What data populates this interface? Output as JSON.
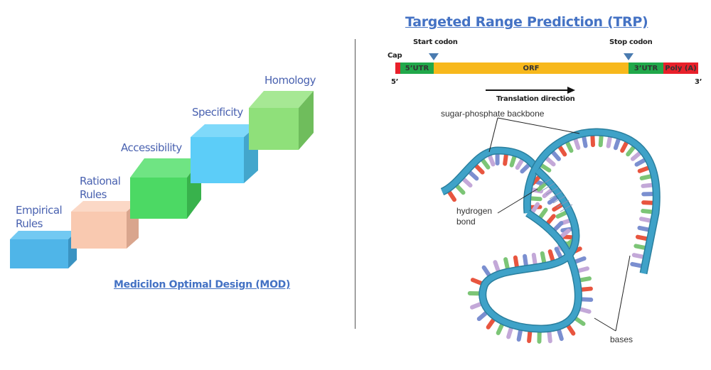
{
  "left": {
    "steps": [
      {
        "label": "Empirical Rules",
        "front": "#4fb5e8",
        "top": "#72c9f2",
        "side": "#3a93c2"
      },
      {
        "label": "Rational Rules",
        "front": "#f9c9b0",
        "top": "#fbd8c6",
        "side": "#d9a58d"
      },
      {
        "label": "Accessibility",
        "front": "#4cd964",
        "top": "#6fe483",
        "side": "#38b24c"
      },
      {
        "label": "Specificity",
        "front": "#5ccdf8",
        "top": "#7fd9fa",
        "side": "#43a6cc"
      },
      {
        "label": "Homology",
        "front": "#8fe07a",
        "top": "#a6e894",
        "side": "#6fbd5c"
      }
    ],
    "title": "Medicilon Optimal Design (MOD)"
  },
  "right": {
    "title": "Targeted Range Prediction (TRP)",
    "mrna": {
      "cap": "Cap",
      "start_codon": "Start codon",
      "stop_codon": "Stop codon",
      "five_prime": "5’",
      "three_prime": "3’",
      "segments": [
        {
          "label": "",
          "color": "#e8202a"
        },
        {
          "label": "5’UTR",
          "color": "#21a84a"
        },
        {
          "label": "ORF",
          "color": "#f7b81c"
        },
        {
          "label": "3’UTR",
          "color": "#21a84a"
        },
        {
          "label": "Poly (A)",
          "color": "#e8202a"
        }
      ],
      "direction": "Translation direction",
      "marker_color": "#4a7bb0"
    },
    "dna": {
      "backbone_label": "sugar-phosphate backbone",
      "hbond_label": [
        "hydrogen",
        "bond"
      ],
      "bases_label": "bases",
      "ribbon_color": "#3fa2c8",
      "base_colors": [
        "#e8553f",
        "#7cc576",
        "#c3a8d8",
        "#7b8fd0"
      ]
    }
  }
}
